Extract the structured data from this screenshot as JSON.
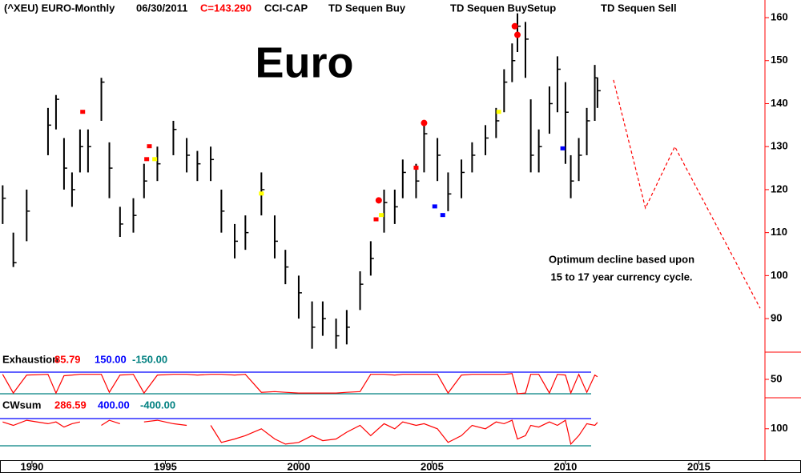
{
  "chart_data": [
    {
      "type": "ohlc",
      "title": "Euro",
      "header": [
        {
          "text": "(^XEU) EURO-Monthly",
          "color": "#000000"
        },
        {
          "text": "06/30/2011",
          "color": "#000000"
        },
        {
          "text": "C=143.290",
          "color": "#ff0000"
        },
        {
          "text": "CCI-CAP",
          "color": "#000000"
        },
        {
          "text": "TD Sequen Buy",
          "color": "#000000"
        },
        {
          "text": "TD Sequen BuySetup",
          "color": "#000000"
        },
        {
          "text": "TD Sequen Sell",
          "color": "#000000"
        }
      ],
      "annotation": [
        "Optimum decline based upon",
        "15 to 17 year currency cycle."
      ],
      "x": [
        1988.9,
        1989.3,
        1989.8,
        1990.6,
        1990.9,
        1991.2,
        1991.5,
        1991.8,
        1992.1,
        1992.6,
        1992.9,
        1993.3,
        1993.8,
        1994.2,
        1994.7,
        1995.3,
        1995.8,
        1996.2,
        1996.7,
        1997.1,
        1997.6,
        1998.0,
        1998.6,
        1999.1,
        1999.5,
        2000.0,
        2000.5,
        2000.9,
        2001.4,
        2001.8,
        2002.3,
        2002.7,
        2003.2,
        2003.6,
        2003.9,
        2004.4,
        2004.7,
        2005.2,
        2005.6,
        2006.1,
        2006.5,
        2007.0,
        2007.4,
        2007.7,
        2008.0,
        2008.2,
        2008.5,
        2008.7,
        2009.0,
        2009.4,
        2009.7,
        2010.0,
        2010.2,
        2010.5,
        2010.8,
        2011.1,
        2011.2
      ],
      "high": [
        121,
        110,
        120,
        139,
        142,
        132,
        124,
        134,
        134,
        146,
        131,
        116,
        118,
        126,
        130,
        136,
        132,
        129,
        130,
        120,
        112,
        114,
        124,
        114,
        106,
        100,
        94,
        94,
        90,
        92,
        101,
        108,
        120,
        120,
        127,
        126,
        136,
        132,
        124,
        127,
        131,
        135,
        139,
        148,
        154,
        161,
        159,
        141,
        134,
        144,
        151,
        145,
        128,
        132,
        139,
        149,
        146
      ],
      "low": [
        112,
        102,
        108,
        128,
        134,
        120,
        116,
        124,
        124,
        136,
        118,
        109,
        110,
        118,
        122,
        128,
        124,
        122,
        122,
        110,
        104,
        106,
        114,
        104,
        98,
        90,
        83,
        86,
        83,
        84,
        92,
        100,
        110,
        112,
        118,
        118,
        124,
        122,
        115,
        118,
        124,
        128,
        132,
        138,
        145,
        152,
        146,
        124,
        124,
        133,
        138,
        126,
        118,
        122,
        128,
        136,
        139
      ],
      "close": [
        118,
        103,
        115,
        135,
        141,
        125,
        120,
        130,
        130,
        145,
        125,
        112,
        114,
        122,
        126,
        134,
        128,
        126,
        127,
        115,
        108,
        110,
        120,
        108,
        102,
        96,
        88,
        90,
        86,
        88,
        98,
        104,
        117,
        116,
        124,
        122,
        133,
        128,
        119,
        124,
        128,
        132,
        136,
        145,
        150,
        158,
        155,
        128,
        130,
        140,
        148,
        138,
        122,
        128,
        136,
        146,
        143
      ],
      "color": "#000000",
      "signals": [
        {
          "shape": "dot",
          "color": "#ff0000",
          "x": [
            2003.0,
            2004.7,
            2008.1,
            2008.2
          ],
          "values": [
            117.5,
            135.5,
            158,
            156
          ]
        },
        {
          "shape": "square",
          "color": "#ffff00",
          "x": [
            1994.6,
            1998.6,
            2003.1,
            2007.5
          ],
          "values": [
            127,
            119,
            114,
            138
          ]
        },
        {
          "shape": "square",
          "color": "#0000ff",
          "x": [
            2005.1,
            2005.4,
            2009.9
          ],
          "values": [
            116,
            114,
            129.5
          ]
        },
        {
          "shape": "square",
          "color": "#ff0000",
          "x": [
            1991.9,
            1994.4,
            1994.3,
            2002.9,
            2004.4
          ],
          "values": [
            138,
            130,
            127,
            113,
            125
          ]
        }
      ],
      "projection": {
        "color": "#ff0000",
        "x": [
          2011.8,
          2013.0,
          2014.1,
          2017.3
        ],
        "values": [
          145.5,
          115.7,
          130,
          92.4
        ]
      },
      "xlim": [
        1988.8,
        2017.48
      ],
      "ylim": [
        82.2,
        164.1
      ],
      "xticks": [
        1990,
        1995,
        2000,
        2005,
        2010,
        2015
      ],
      "yticks": [
        90,
        100,
        110,
        120,
        130,
        140,
        150,
        160
      ]
    },
    {
      "type": "line",
      "title": "Exhaustion",
      "color": "#ff0000",
      "x": [
        1988.9,
        1989.3,
        1989.8,
        1990.6,
        1990.9,
        1991.2,
        1991.5,
        1991.8,
        1992.1,
        1992.6,
        1992.9,
        1993.3,
        1993.8,
        1994.2,
        1994.7,
        1995.3,
        1995.8,
        1996.2,
        1996.7,
        1997.1,
        1997.6,
        1998.0,
        1998.6,
        1999.1,
        1999.5,
        2000.0,
        2000.5,
        2000.9,
        2001.4,
        2001.8,
        2002.3,
        2002.7,
        2003.2,
        2003.6,
        2003.9,
        2004.4,
        2004.7,
        2005.2,
        2005.6,
        2006.1,
        2006.5,
        2007.0,
        2007.4,
        2007.7,
        2008.0,
        2008.2,
        2008.5,
        2008.7,
        2009.0,
        2009.4,
        2009.7,
        2010.0,
        2010.2,
        2010.5,
        2010.8,
        2011.1,
        2011.2
      ],
      "values": [
        120,
        -140,
        110,
        120,
        -140,
        100,
        110,
        120,
        120,
        120,
        -130,
        110,
        120,
        -140,
        110,
        120,
        120,
        110,
        120,
        120,
        110,
        120,
        -130,
        -120,
        -130,
        -140,
        -140,
        -140,
        -140,
        -130,
        -120,
        120,
        120,
        110,
        120,
        120,
        120,
        120,
        -140,
        110,
        120,
        120,
        120,
        120,
        130,
        -150,
        -140,
        120,
        120,
        -140,
        120,
        110,
        -140,
        120,
        -130,
        110,
        85.79
      ],
      "levels": [
        {
          "value": 150,
          "label": "150.00",
          "color": "#0000ff"
        },
        {
          "value": -150,
          "label": "-150.00",
          "color": "#008080"
        }
      ],
      "xlim": [
        1988.8,
        2017.48
      ],
      "ylim": [
        -205.6,
        394.4
      ],
      "yticks": [
        50
      ]
    },
    {
      "type": "line",
      "title": "CWsum",
      "color": "#ff0000",
      "x": [
        1988.9,
        1989.3,
        1989.8,
        1990.6,
        1990.9,
        1991.2,
        1991.5,
        1991.8,
        1992.1,
        1992.6,
        1992.9,
        1993.3,
        1993.8,
        1994.2,
        1994.7,
        1995.3,
        1995.8,
        1996.2,
        1996.7,
        1997.1,
        1997.6,
        1998.0,
        1998.6,
        1999.1,
        1999.5,
        2000.0,
        2000.5,
        2000.9,
        2001.4,
        2001.8,
        2002.3,
        2002.7,
        2003.2,
        2003.6,
        2003.9,
        2004.4,
        2004.7,
        2005.2,
        2005.6,
        2006.1,
        2006.5,
        2007.0,
        2007.4,
        2007.7,
        2008.0,
        2008.2,
        2008.5,
        2008.7,
        2009.0,
        2009.4,
        2009.7,
        2010.0,
        2010.2,
        2010.5,
        2010.8,
        2011.1,
        2011.2
      ],
      "values": [
        300,
        200,
        350,
        250,
        300,
        150,
        250,
        300,
        null,
        200,
        350,
        250,
        null,
        300,
        350,
        250,
        200,
        null,
        200,
        -300,
        -200,
        -100,
        100,
        -200,
        -350,
        -300,
        -100,
        -250,
        -200,
        0,
        200,
        -100,
        250,
        100,
        300,
        200,
        250,
        100,
        -300,
        -100,
        200,
        100,
        300,
        250,
        350,
        -200,
        -100,
        200,
        150,
        300,
        200,
        350,
        -350,
        -100,
        250,
        200,
        286.59
      ],
      "levels": [
        {
          "value": 400,
          "label": "400.00",
          "color": "#0000ff"
        },
        {
          "value": -400,
          "label": "-400.00",
          "color": "#008080"
        }
      ],
      "xlim": [
        1988.8,
        2017.48
      ],
      "ylim": [
        -588,
        941
      ],
      "yticks": [
        100
      ]
    }
  ]
}
